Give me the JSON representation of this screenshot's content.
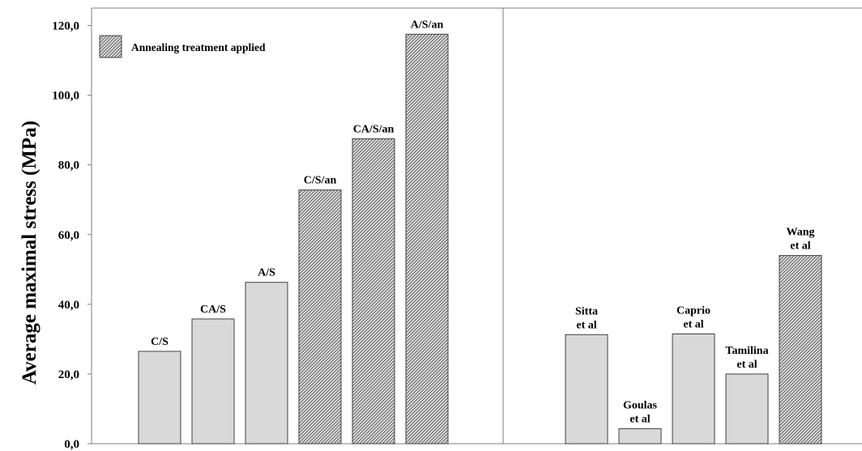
{
  "chart_data": {
    "type": "bar",
    "ylabel": "Average maximal stress (MPa)",
    "xlabel": "",
    "ylim": [
      0,
      120
    ],
    "yticks": [
      "0,0",
      "20,0",
      "40,0",
      "60,0",
      "80,0",
      "100,0",
      "120,0"
    ],
    "grid": false,
    "legend": {
      "position": "top-left",
      "entries": [
        {
          "label": "Annealing treatment applied",
          "pattern": "hatched"
        }
      ]
    },
    "panels": [
      {
        "bars": [
          {
            "label": [
              "C/S"
            ],
            "value": 26.5,
            "annealed": false
          },
          {
            "label": [
              "CA/S"
            ],
            "value": 35.8,
            "annealed": false
          },
          {
            "label": [
              "A/S"
            ],
            "value": 46.3,
            "annealed": false
          },
          {
            "label": [
              "C/S/an"
            ],
            "value": 72.8,
            "annealed": true
          },
          {
            "label": [
              "CA/S/an"
            ],
            "value": 87.5,
            "annealed": true
          },
          {
            "label": [
              "A/S/an"
            ],
            "value": 117.5,
            "annealed": true
          }
        ]
      },
      {
        "bars": [
          {
            "label": [
              "Sitta",
              "et al"
            ],
            "value": 31.3,
            "annealed": false
          },
          {
            "label": [
              "Goulas",
              "et al"
            ],
            "value": 4.3,
            "annealed": false
          },
          {
            "label": [
              "Caprio",
              "et al"
            ],
            "value": 31.5,
            "annealed": false
          },
          {
            "label": [
              "Tamilina",
              "et al"
            ],
            "value": 20.0,
            "annealed": false
          },
          {
            "label": [
              "Wang",
              "et al"
            ],
            "value": 54.0,
            "annealed": true
          }
        ]
      }
    ],
    "colors": {
      "bar_fill": "#d9d9d9",
      "bar_stroke": "#404040",
      "hatch": "#5a5a5a",
      "axis": "#7f7f7f"
    }
  }
}
